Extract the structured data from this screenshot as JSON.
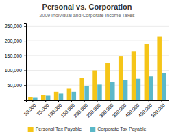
{
  "chart_data": {
    "type": "bar",
    "title": "Personal vs. Corporation",
    "subtitle": "2009 Individual and Corporate Income Taxes",
    "categories": [
      "50,000",
      "75,000",
      "100,000",
      "150,000",
      "200,000",
      "250,000",
      "300,000",
      "350,000",
      "400,000",
      "450,000",
      "500,000"
    ],
    "series": [
      {
        "name": "Personal Tax Payable",
        "color": "#F5C518",
        "values": [
          10000,
          18000,
          28000,
          38000,
          75000,
          100000,
          125000,
          147000,
          165000,
          190000,
          215000
        ]
      },
      {
        "name": "Corporate Tax Payable",
        "color": "#5BB8C8",
        "values": [
          8000,
          15000,
          22000,
          28000,
          47000,
          52000,
          60000,
          68000,
          72000,
          80000,
          90000
        ]
      }
    ],
    "ylim": [
      0,
      260000
    ],
    "yticks": [
      {
        "value": 50000,
        "label": "50,000"
      },
      {
        "value": 100000,
        "label": "100,000"
      },
      {
        "value": 150000,
        "label": "150,000"
      },
      {
        "value": 200000,
        "label": "200,000"
      },
      {
        "value": 250000,
        "label": "250,000"
      }
    ],
    "grid": true,
    "legend": "bottom"
  }
}
